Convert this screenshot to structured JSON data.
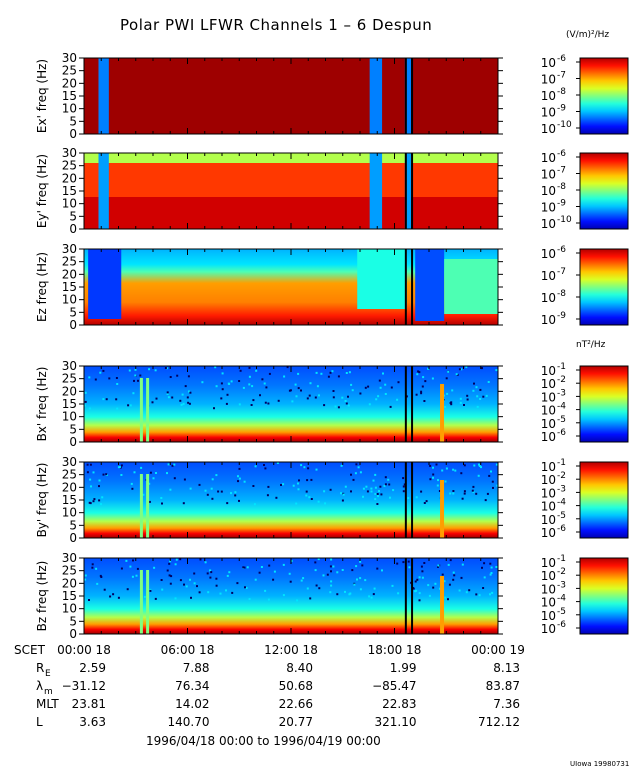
{
  "title": "Polar PWI LFWR Channels 1 – 6 Despun",
  "units": {
    "electric": "(V/m)²/Hz",
    "magnetic": "nT²/Hz"
  },
  "credit": "UIowa 19980731",
  "time_range_label": "1996/04/18 00:00 to 1996/04/19 00:00",
  "chart_data": {
    "type": "heatmap",
    "title": "Polar PWI LFWR Channels 1 – 6 Despun",
    "xlabel": "SCET",
    "x_ticks": [
      "00:00 18",
      "06:00 18",
      "12:00 18",
      "18:00 18",
      "00:00 19"
    ],
    "xlim": [
      "1996/04/18 00:00",
      "1996/04/19 00:00"
    ],
    "ylim": [
      0,
      30
    ],
    "y_ticks": [
      0,
      5,
      10,
      15,
      20,
      25,
      30
    ],
    "panels": [
      {
        "ylabel": "Ex' freq (Hz)",
        "colorbar": {
          "unit": "(V/m)²/Hz",
          "ticks": [
            "10^-6",
            "10^-7",
            "10^-8",
            "10^-9",
            "10^-10"
          ]
        }
      },
      {
        "ylabel": "Ey' freq (Hz)",
        "colorbar": {
          "unit": "(V/m)²/Hz",
          "ticks": [
            "10^-6",
            "10^-7",
            "10^-8",
            "10^-9",
            "10^-10"
          ]
        }
      },
      {
        "ylabel": "Ez freq (Hz)",
        "colorbar": {
          "unit": "(V/m)²/Hz",
          "ticks": [
            "10^-6",
            "10^-7",
            "10^-8",
            "10^-9"
          ]
        }
      },
      {
        "ylabel": "Bx' freq (Hz)",
        "colorbar": {
          "unit": "nT²/Hz",
          "ticks": [
            "10^-1",
            "10^-2",
            "10^-3",
            "10^-4",
            "10^-5",
            "10^-6"
          ]
        }
      },
      {
        "ylabel": "By' freq (Hz)",
        "colorbar": {
          "unit": "nT²/Hz",
          "ticks": [
            "10^-1",
            "10^-2",
            "10^-3",
            "10^-4",
            "10^-5",
            "10^-6"
          ]
        }
      },
      {
        "ylabel": "Bz freq (Hz)",
        "colorbar": {
          "unit": "nT²/Hz",
          "ticks": [
            "10^-1",
            "10^-2",
            "10^-3",
            "10^-4",
            "10^-5",
            "10^-6"
          ]
        }
      }
    ],
    "ephemeris": [
      {
        "label": "R",
        "sub": "E",
        "values": [
          "2.59",
          "7.88",
          "8.40",
          "1.99",
          "8.13"
        ]
      },
      {
        "label": "λ",
        "sub": "m",
        "values": [
          "−31.12",
          "76.34",
          "50.68",
          "−85.47",
          "83.87"
        ]
      },
      {
        "label": "MLT",
        "sub": "",
        "values": [
          "23.81",
          "14.02",
          "22.66",
          "22.83",
          "7.36"
        ]
      },
      {
        "label": "L",
        "sub": "",
        "values": [
          "3.63",
          "140.70",
          "20.77",
          "321.10",
          "712.12"
        ]
      }
    ]
  }
}
